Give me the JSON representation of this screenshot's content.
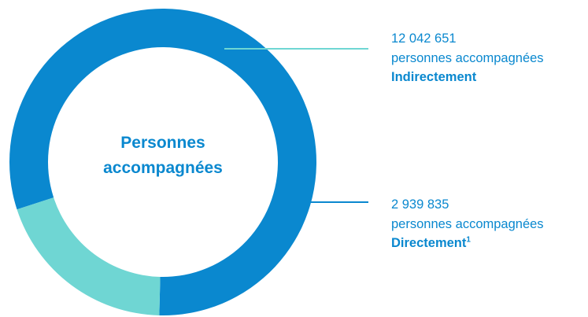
{
  "chart_data": {
    "type": "pie",
    "variant": "donut",
    "center_label": [
      "Personnes",
      "accompagnées"
    ],
    "slices": [
      {
        "value": 12042651,
        "value_label": "12 042 651",
        "line1": "personnes accompagnées",
        "line2": "Indirectement",
        "superscript": "",
        "color": "#0a88cf",
        "leader_color": "#6fd6d3"
      },
      {
        "value": 2939835,
        "value_label": "2 939 835",
        "line1": "personnes accompagnées",
        "line2": "Directement",
        "superscript": "1",
        "color": "#6fd6d3",
        "leader_color": "#0a88cf"
      }
    ]
  }
}
